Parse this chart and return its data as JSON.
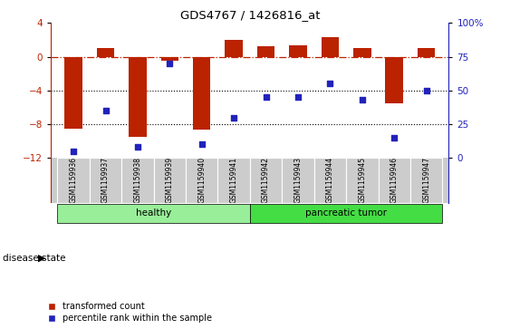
{
  "title": "GDS4767 / 1426816_at",
  "samples": [
    "GSM1159936",
    "GSM1159937",
    "GSM1159938",
    "GSM1159939",
    "GSM1159940",
    "GSM1159941",
    "GSM1159942",
    "GSM1159943",
    "GSM1159944",
    "GSM1159945",
    "GSM1159946",
    "GSM1159947"
  ],
  "transformed_count": [
    -8.5,
    1.0,
    -9.5,
    -0.5,
    -8.7,
    2.0,
    1.2,
    1.4,
    2.3,
    1.0,
    -5.5,
    1.0
  ],
  "percentile_rank": [
    5,
    35,
    8,
    70,
    10,
    30,
    45,
    45,
    55,
    43,
    15,
    50
  ],
  "healthy_count": 6,
  "tumor_count": 6,
  "bar_color": "#bb2200",
  "dot_color": "#2222bb",
  "healthy_color": "#99ee99",
  "tumor_color": "#44dd44",
  "label_bg_color": "#cccccc",
  "left_ylim": [
    -12,
    4
  ],
  "right_ylim": [
    0,
    100
  ],
  "left_yticks": [
    -12,
    -8,
    -4,
    0,
    4
  ],
  "right_yticks": [
    0,
    25,
    50,
    75,
    100
  ],
  "hline_y": 0,
  "dotted_hlines": [
    -4,
    -8
  ],
  "legend_red_label": "transformed count",
  "legend_blue_label": "percentile rank within the sample",
  "disease_state_label": "disease state",
  "healthy_label": "healthy",
  "tumor_label": "pancreatic tumor"
}
